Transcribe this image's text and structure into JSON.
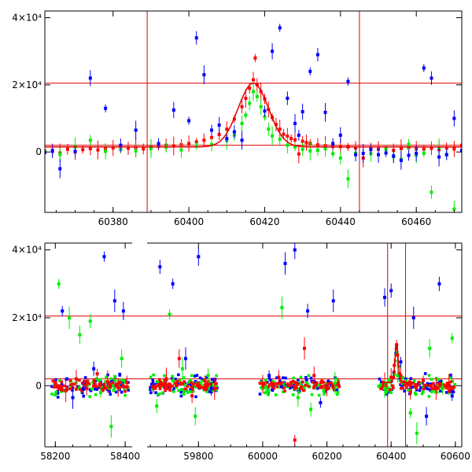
{
  "chart_data": [
    {
      "type": "scatter",
      "panel": "top",
      "xlim": [
        60362,
        60472
      ],
      "ylim": [
        -18000,
        42000
      ],
      "x_ticks": [
        60380,
        60400,
        60420,
        60440,
        60460
      ],
      "x_tick_labels": [
        "60380",
        "60400",
        "60420",
        "60440",
        "60460"
      ],
      "y_ticks": [
        0,
        20000,
        40000
      ],
      "y_tick_labels": [
        "0",
        "2×10⁴",
        "4×10⁴"
      ],
      "hlines": [
        2000,
        20500
      ],
      "vlines": [
        60389,
        60445
      ],
      "curve_color": "#e00000",
      "curve_model": {
        "baseline": 1500,
        "peak": 20500,
        "t0": 60417,
        "width": 4
      },
      "series": [
        {
          "color": "#ff0000",
          "points": [
            [
              60362,
              300
            ],
            [
              60364,
              500
            ],
            [
              60366,
              -300
            ],
            [
              60368,
              800
            ],
            [
              60370,
              0
            ],
            [
              60372,
              700
            ],
            [
              60374,
              1000
            ],
            [
              60376,
              600
            ],
            [
              60378,
              900
            ],
            [
              60380,
              1200
            ],
            [
              60382,
              800
            ],
            [
              60384,
              1100
            ],
            [
              60386,
              1300
            ],
            [
              60388,
              900
            ],
            [
              60390,
              1400
            ],
            [
              60392,
              1700
            ],
            [
              60394,
              2000
            ],
            [
              60396,
              1800
            ],
            [
              60398,
              2200
            ],
            [
              60400,
              2500
            ],
            [
              60402,
              3000
            ],
            [
              60404,
              3500
            ],
            [
              60406,
              4300
            ],
            [
              60408,
              5200
            ],
            [
              60410,
              6800
            ],
            [
              60412,
              9800
            ],
            [
              60414,
              13500
            ],
            [
              60415,
              16000
            ],
            [
              60416,
              19000
            ],
            [
              60417,
              21500
            ],
            [
              60417.5,
              28000
            ],
            [
              60418,
              20000
            ],
            [
              60419,
              18000
            ],
            [
              60420,
              15800
            ],
            [
              60421,
              12700
            ],
            [
              60422,
              10300
            ],
            [
              60423,
              8200
            ],
            [
              60424,
              6800
            ],
            [
              60425,
              5300
            ],
            [
              60426,
              4700
            ],
            [
              60427,
              4000
            ],
            [
              60428,
              3600
            ],
            [
              60429,
              -600
            ],
            [
              60430,
              3200
            ],
            [
              60431,
              2800
            ],
            [
              60432,
              2600
            ],
            [
              60434,
              2100
            ],
            [
              60436,
              1900
            ],
            [
              60438,
              1700
            ],
            [
              60440,
              1600
            ],
            [
              60442,
              1500
            ],
            [
              60444,
              1200
            ],
            [
              60446,
              -1800
            ],
            [
              60448,
              1200
            ],
            [
              60450,
              800
            ],
            [
              60452,
              900
            ],
            [
              60454,
              500
            ],
            [
              60456,
              1000
            ],
            [
              60458,
              1300
            ],
            [
              60460,
              900
            ],
            [
              60462,
              800
            ],
            [
              60464,
              1100
            ],
            [
              60466,
              700
            ],
            [
              60468,
              1200
            ],
            [
              60470,
              900
            ],
            [
              60472,
              2000
            ]
          ]
        },
        {
          "color": "#00ee00",
          "points": [
            [
              60362,
              100
            ],
            [
              60366,
              -700
            ],
            [
              60370,
              1500
            ],
            [
              60374,
              3500
            ],
            [
              60378,
              200
            ],
            [
              60382,
              900
            ],
            [
              60386,
              300
            ],
            [
              60390,
              1000
            ],
            [
              60394,
              1500
            ],
            [
              60398,
              600
            ],
            [
              60402,
              1800
            ],
            [
              60406,
              2200
            ],
            [
              60410,
              3500
            ],
            [
              60412,
              5000
            ],
            [
              60414,
              8500
            ],
            [
              60415,
              11000
            ],
            [
              60416,
              14500
            ],
            [
              60417,
              18000
            ],
            [
              60418,
              16500
            ],
            [
              60419,
              13500
            ],
            [
              60420,
              10500
            ],
            [
              60421,
              6800
            ],
            [
              60422,
              4800
            ],
            [
              60424,
              3800
            ],
            [
              60426,
              2000
            ],
            [
              60428,
              1500
            ],
            [
              60430,
              800
            ],
            [
              60432,
              300
            ],
            [
              60434,
              500
            ],
            [
              60436,
              1000
            ],
            [
              60438,
              -500
            ],
            [
              60440,
              -1800
            ],
            [
              60442,
              -8000
            ],
            [
              60444,
              -400
            ],
            [
              60448,
              -500
            ],
            [
              60452,
              800
            ],
            [
              60454,
              -1400
            ],
            [
              60456,
              -2200
            ],
            [
              60458,
              2300
            ],
            [
              60460,
              -1000
            ],
            [
              60462,
              -400
            ],
            [
              60464,
              -12000
            ],
            [
              60466,
              1200
            ],
            [
              60468,
              -800
            ],
            [
              60470,
              -17000
            ]
          ]
        },
        {
          "color": "#0000ff",
          "points": [
            [
              60362,
              -200
            ],
            [
              60364,
              200
            ],
            [
              60366,
              -5000
            ],
            [
              60370,
              200
            ],
            [
              60374,
              22000
            ],
            [
              60378,
              13000
            ],
            [
              60382,
              2000
            ],
            [
              60386,
              6500
            ],
            [
              60392,
              2500
            ],
            [
              60396,
              12500
            ],
            [
              60400,
              9300
            ],
            [
              60402,
              34000
            ],
            [
              60404,
              23000
            ],
            [
              60406,
              6500
            ],
            [
              60408,
              8000
            ],
            [
              60410,
              4000
            ],
            [
              60412,
              6000
            ],
            [
              60414,
              3500
            ],
            [
              60420,
              12200
            ],
            [
              60422,
              30000
            ],
            [
              60424,
              37000
            ],
            [
              60426,
              16000
            ],
            [
              60428,
              8500
            ],
            [
              60429,
              5000
            ],
            [
              60430,
              12000
            ],
            [
              60432,
              24000
            ],
            [
              60434,
              29000
            ],
            [
              60436,
              11800
            ],
            [
              60438,
              2500
            ],
            [
              60440,
              5000
            ],
            [
              60442,
              21000
            ],
            [
              60444,
              -800
            ],
            [
              60446,
              -400
            ],
            [
              60448,
              700
            ],
            [
              60450,
              -800
            ],
            [
              60452,
              -300
            ],
            [
              60454,
              -1200
            ],
            [
              60456,
              -2500
            ],
            [
              60458,
              -1000
            ],
            [
              60460,
              -400
            ],
            [
              60462,
              25000
            ],
            [
              60464,
              22000
            ],
            [
              60466,
              -1500
            ],
            [
              60468,
              -800
            ],
            [
              60470,
              10000
            ],
            [
              60472,
              500
            ]
          ]
        }
      ]
    },
    {
      "type": "scatter",
      "panel": "bottom",
      "axis_segments": [
        {
          "xlim": [
            58170,
            58420
          ]
        },
        {
          "xlim": [
            59640,
            60620
          ]
        }
      ],
      "ylim": [
        -18000,
        42000
      ],
      "x_ticks": [
        58200,
        58400,
        59800,
        60000,
        60200,
        60400,
        60600
      ],
      "x_tick_labels": [
        "58200",
        "58400",
        "59800",
        "60000",
        "60200",
        "60400",
        "60600"
      ],
      "y_ticks": [
        0,
        20000,
        40000
      ],
      "y_tick_labels": [
        "0",
        "2×10⁴",
        "4×10⁴"
      ],
      "hlines": [
        2000,
        20500
      ],
      "vlines": [
        60389,
        60445
      ],
      "curve_color": "#e00000",
      "curve_model": {
        "baseline": 1000,
        "peak": 12000,
        "t0": 60417,
        "width": 5
      },
      "observing_seasons": [
        [
          58190,
          58410
        ],
        [
          59650,
          59860
        ],
        [
          59990,
          60240
        ],
        [
          60360,
          60600
        ]
      ],
      "series": [
        {
          "color": "#ff0000",
          "points": [
            [
              58200,
              800
            ],
            [
              58230,
              -1500
            ],
            [
              58260,
              2000
            ],
            [
              58290,
              -800
            ],
            [
              58320,
              3500
            ],
            [
              58350,
              1200
            ],
            [
              58380,
              -600
            ],
            [
              58405,
              900
            ],
            [
              59660,
              -500
            ],
            [
              59700,
              2000
            ],
            [
              59740,
              8000
            ],
            [
              59780,
              -3000
            ],
            [
              59820,
              1500
            ],
            [
              59850,
              -900
            ],
            [
              60000,
              500
            ],
            [
              60050,
              2500
            ],
            [
              60100,
              -16000
            ],
            [
              60130,
              11000
            ],
            [
              60160,
              3000
            ],
            [
              60200,
              -1000
            ],
            [
              60235,
              800
            ],
            [
              60380,
              600
            ],
            [
              60400,
              2500
            ],
            [
              60410,
              6000
            ],
            [
              60417,
              12000
            ],
            [
              60420,
              9000
            ],
            [
              60430,
              3000
            ],
            [
              60460,
              -2000
            ],
            [
              60500,
              1500
            ],
            [
              60540,
              -900
            ],
            [
              60580,
              700
            ]
          ]
        },
        {
          "color": "#00ee00",
          "points": [
            [
              58210,
              30000
            ],
            [
              58240,
              20000
            ],
            [
              58270,
              15000
            ],
            [
              58300,
              19000
            ],
            [
              58330,
              -2000
            ],
            [
              58360,
              -12000
            ],
            [
              58390,
              8000
            ],
            [
              59670,
              -6000
            ],
            [
              59710,
              21000
            ],
            [
              59750,
              5000
            ],
            [
              59790,
              -9000
            ],
            [
              59830,
              3000
            ],
            [
              60010,
              -500
            ],
            [
              60060,
              23000
            ],
            [
              60110,
              -3500
            ],
            [
              60150,
              -7000
            ],
            [
              60190,
              -1500
            ],
            [
              60225,
              800
            ],
            [
              60380,
              -800
            ],
            [
              60420,
              3000
            ],
            [
              60460,
              -8000
            ],
            [
              60480,
              -14000
            ],
            [
              60520,
              11000
            ],
            [
              60560,
              -500
            ],
            [
              60590,
              14000
            ]
          ]
        },
        {
          "color": "#0000ff",
          "points": [
            [
              58220,
              22000
            ],
            [
              58250,
              -3500
            ],
            [
              58280,
              -1000
            ],
            [
              58310,
              5000
            ],
            [
              58340,
              38000
            ],
            [
              58370,
              25000
            ],
            [
              58395,
              22000
            ],
            [
              59680,
              35000
            ],
            [
              59720,
              30000
            ],
            [
              59760,
              8000
            ],
            [
              59800,
              38000
            ],
            [
              59840,
              -800
            ],
            [
              60020,
              3000
            ],
            [
              60070,
              36000
            ],
            [
              60100,
              40000
            ],
            [
              60140,
              22000
            ],
            [
              60180,
              -5000
            ],
            [
              60220,
              25000
            ],
            [
              60380,
              26000
            ],
            [
              60400,
              28000
            ],
            [
              60430,
              7000
            ],
            [
              60470,
              20000
            ],
            [
              60510,
              -9000
            ],
            [
              60550,
              30000
            ],
            [
              60590,
              -3000
            ]
          ]
        }
      ]
    }
  ]
}
